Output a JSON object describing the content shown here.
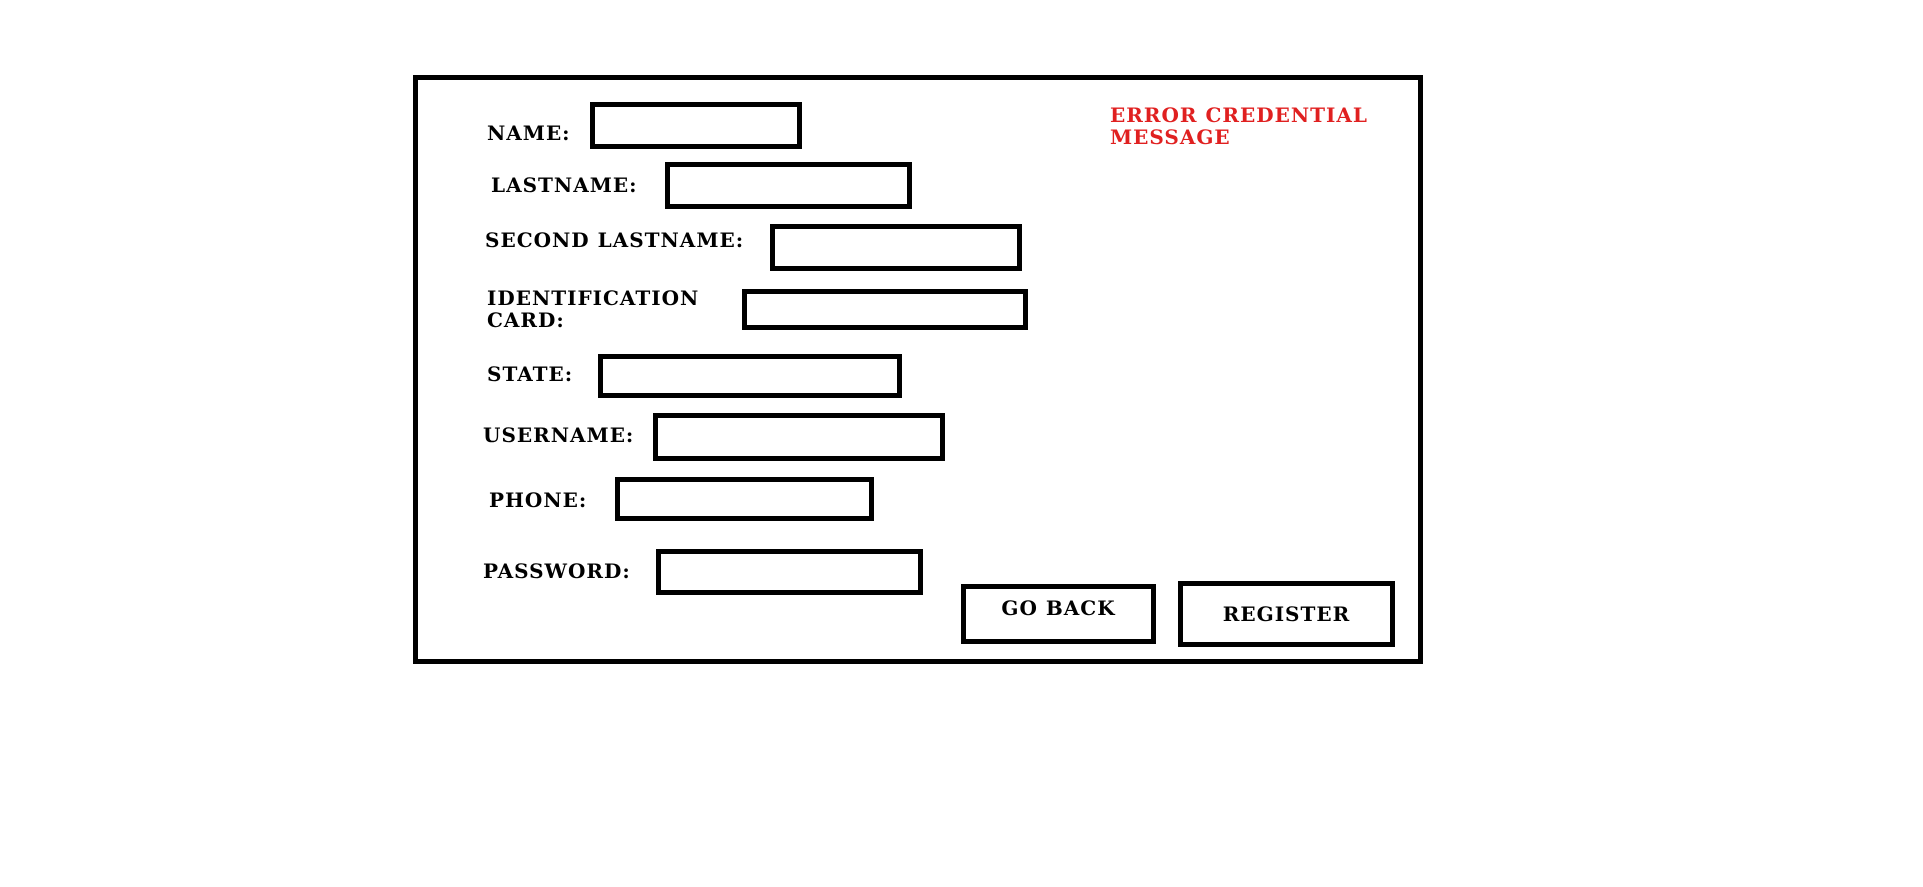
{
  "form": {
    "error_message": "ERROR CREDENTIAL MESSAGE",
    "fields": {
      "name": {
        "label": "NAME:",
        "value": ""
      },
      "lastname": {
        "label": "LASTNAME:",
        "value": ""
      },
      "second_lastname": {
        "label": "SECOND LASTNAME:",
        "value": ""
      },
      "identification_card": {
        "label": "IDENTIFICATION CARD:",
        "value": ""
      },
      "state": {
        "label": "STATE:",
        "value": ""
      },
      "username": {
        "label": "USERNAME:",
        "value": ""
      },
      "phone": {
        "label": "PHONE:",
        "value": ""
      },
      "password": {
        "label": "PASSWORD:",
        "value": ""
      }
    },
    "buttons": {
      "go_back": "GO BACK",
      "register": "REGISTER"
    }
  },
  "colors": {
    "error": "#e02020",
    "border": "#000000",
    "background": "#ffffff"
  }
}
